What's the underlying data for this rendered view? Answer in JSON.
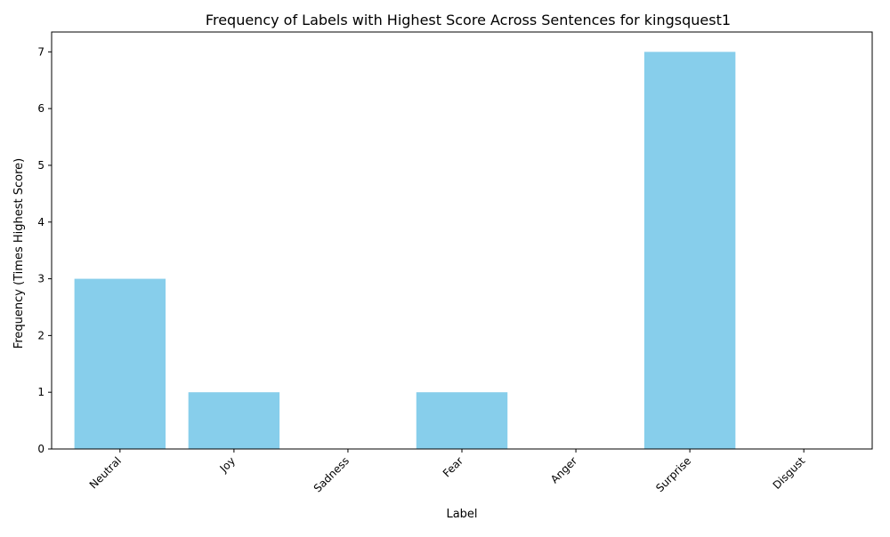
{
  "chart_data": {
    "type": "bar",
    "title": "Frequency of Labels with Highest Score Across Sentences for kingsquest1",
    "xlabel": "Label",
    "ylabel": "Frequency (Times Highest Score)",
    "categories": [
      "Neutral",
      "Joy",
      "Sadness",
      "Fear",
      "Anger",
      "Surprise",
      "Disgust"
    ],
    "values": [
      3,
      1,
      0,
      1,
      0,
      7,
      0
    ],
    "ylim": [
      0,
      7.35
    ],
    "yticks": [
      0,
      1,
      2,
      3,
      4,
      5,
      6,
      7
    ],
    "bar_color": "#87CEEB",
    "grid": false,
    "legend": "none"
  }
}
